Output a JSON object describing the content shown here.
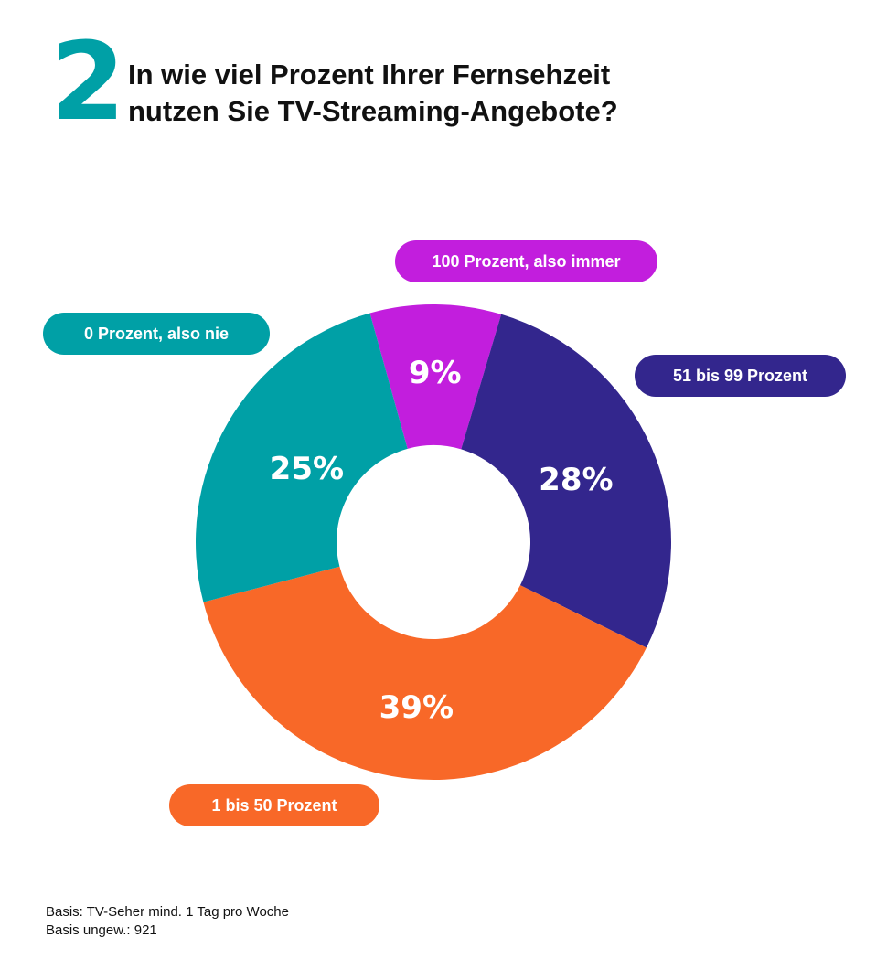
{
  "header": {
    "number": "2",
    "title_line1": "In wie viel Prozent Ihrer Fernsehzeit",
    "title_line2": "nutzen Sie TV-Streaming-Angebote?"
  },
  "chart_data": {
    "type": "pie",
    "donut": true,
    "title": "In wie viel Prozent Ihrer Fernsehzeit nutzen Sie TV-Streaming-Angebote?",
    "categories": [
      "100 Prozent, also immer",
      "51 bis 99 Prozent",
      "1 bis 50 Prozent",
      "0 Prozent, also nie"
    ],
    "values": [
      9,
      28,
      39,
      25
    ],
    "value_labels": [
      "9%",
      "28%",
      "39%",
      "25%"
    ],
    "colors": [
      "#C21EDD",
      "#33268D",
      "#F86828",
      "#00A0A6"
    ]
  },
  "footnote": {
    "line1": "Basis: TV-Seher mind. 1 Tag pro Woche",
    "line2": "Basis ungew.: 921"
  }
}
